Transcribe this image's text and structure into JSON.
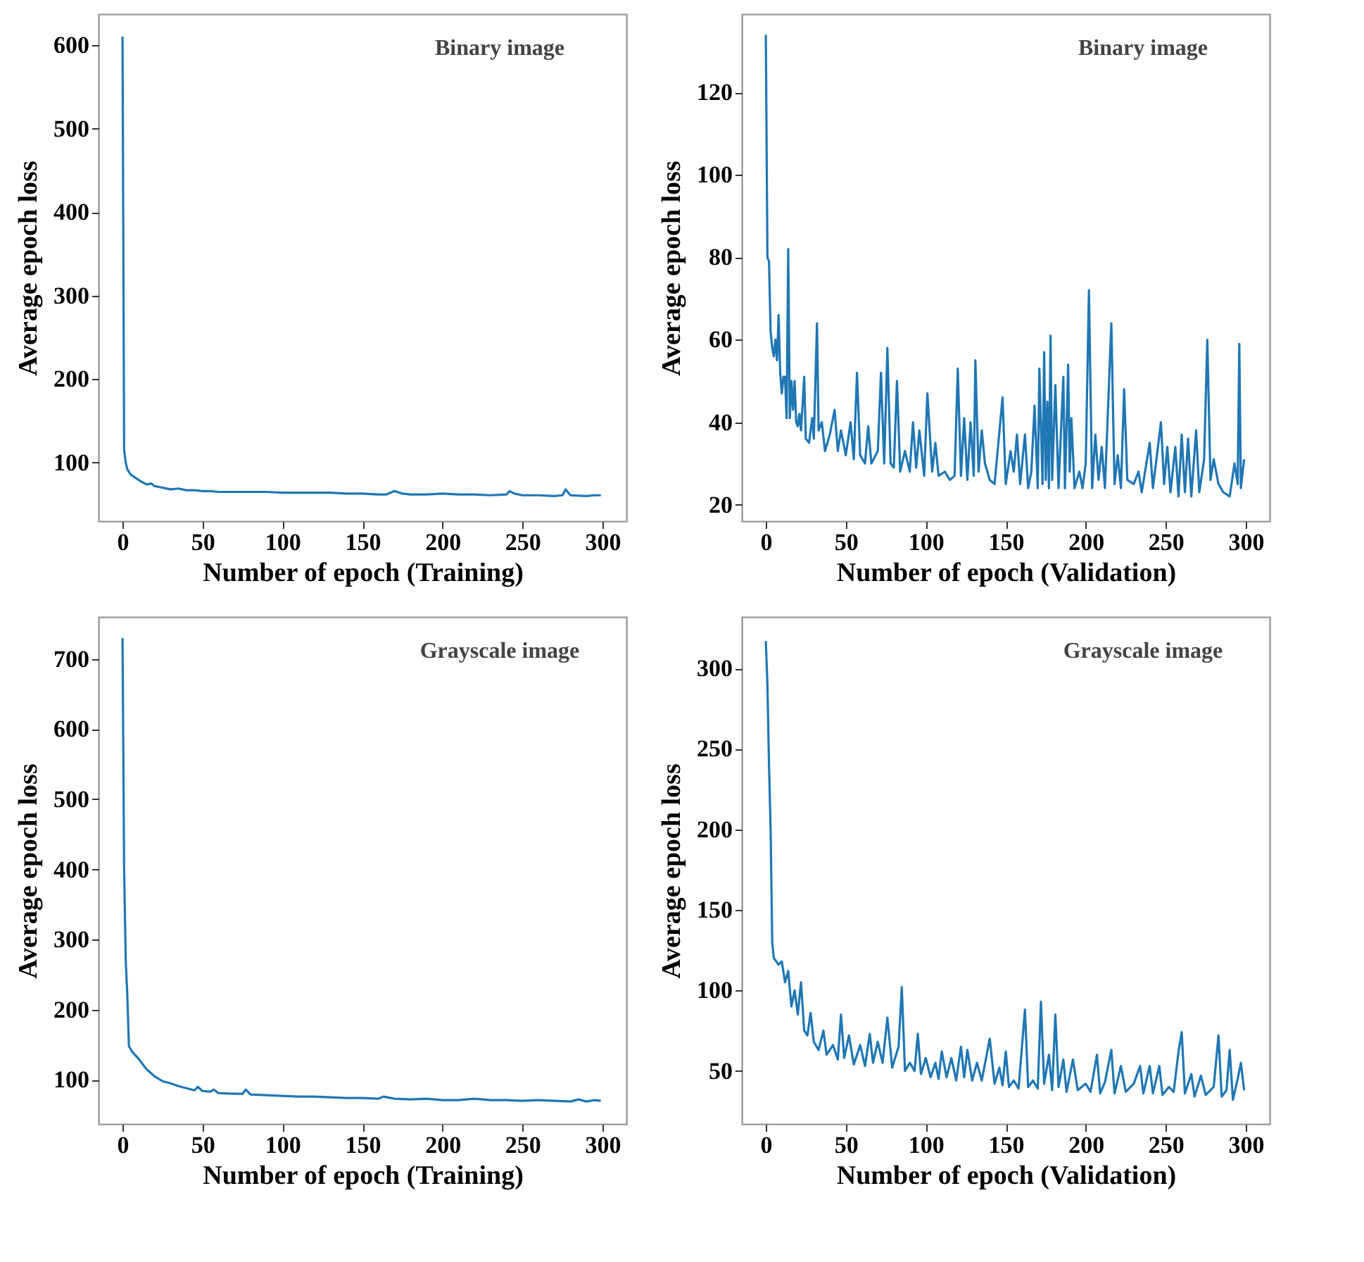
{
  "chart_data": [
    {
      "type": "line",
      "xlabel": "Number of epoch (Training)",
      "ylabel": "Average epoch loss",
      "annotations": [
        "Binary image"
      ],
      "color": "#1f77b4",
      "xlim": [
        -15,
        315
      ],
      "ylim": [
        30,
        637
      ],
      "xticks": [
        0,
        50,
        100,
        150,
        200,
        250,
        300
      ],
      "yticks": [
        100,
        200,
        300,
        400,
        500,
        600
      ],
      "x": [
        0,
        1,
        2,
        3,
        5,
        8,
        12,
        15,
        18,
        20,
        25,
        30,
        35,
        40,
        45,
        50,
        55,
        60,
        70,
        80,
        90,
        100,
        110,
        120,
        130,
        140,
        150,
        160,
        165,
        170,
        175,
        180,
        190,
        200,
        210,
        220,
        230,
        240,
        242,
        245,
        250,
        260,
        270,
        275,
        277,
        280,
        290,
        295,
        299
      ],
      "values": [
        610,
        115,
        100,
        92,
        86,
        82,
        77,
        74,
        75,
        72,
        70,
        68,
        69,
        67,
        67,
        66,
        66,
        65,
        65,
        65,
        65,
        64,
        64,
        64,
        64,
        63,
        63,
        62,
        62,
        66,
        63,
        62,
        62,
        63,
        62,
        62,
        61,
        62,
        66,
        63,
        61,
        61,
        60,
        61,
        68,
        61,
        60,
        61,
        61
      ]
    },
    {
      "type": "line",
      "xlabel": "Number of epoch (Validation)",
      "ylabel": "Average epoch loss",
      "annotations": [
        "Binary image"
      ],
      "color": "#1f77b4",
      "xlim": [
        -15,
        315
      ],
      "ylim": [
        16,
        139
      ],
      "xticks": [
        0,
        50,
        100,
        150,
        200,
        250,
        300
      ],
      "yticks": [
        20,
        40,
        60,
        80,
        100,
        120
      ],
      "x": [
        0,
        1,
        2,
        3,
        4,
        5,
        6,
        7,
        8,
        9,
        10,
        11,
        12,
        13,
        14,
        15,
        16,
        17,
        18,
        19,
        20,
        21,
        22,
        24,
        25,
        27,
        29,
        30,
        32,
        33,
        35,
        37,
        40,
        43,
        45,
        47,
        50,
        53,
        55,
        57,
        59,
        62,
        64,
        66,
        70,
        72,
        74,
        76,
        78,
        80,
        82,
        84,
        87,
        90,
        92,
        94,
        96,
        99,
        101,
        104,
        106,
        108,
        112,
        115,
        118,
        120,
        122,
        124,
        126,
        128,
        130,
        131,
        133,
        135,
        137,
        140,
        143,
        148,
        150,
        153,
        155,
        157,
        159,
        162,
        164,
        166,
        168,
        170,
        171,
        173,
        174,
        175,
        176,
        177,
        178,
        179,
        181,
        183,
        186,
        187,
        189,
        190,
        191,
        193,
        196,
        198,
        200,
        202,
        204,
        206,
        208,
        210,
        212,
        216,
        218,
        220,
        222,
        224,
        226,
        230,
        233,
        235,
        240,
        242,
        247,
        249,
        251,
        253,
        256,
        258,
        260,
        262,
        264,
        266,
        269,
        271,
        274,
        276,
        278,
        280,
        283,
        286,
        290,
        293,
        295,
        296,
        297,
        299
      ],
      "values": [
        134,
        80,
        79,
        62,
        58,
        56,
        60,
        55,
        66,
        52,
        47,
        51,
        51,
        41,
        82,
        41,
        50,
        43,
        50,
        40,
        39,
        42,
        38,
        51,
        36,
        35,
        41,
        36,
        64,
        38,
        40,
        33,
        37,
        43,
        33,
        38,
        32,
        40,
        31,
        52,
        32,
        30,
        39,
        30,
        33,
        52,
        30,
        58,
        30,
        29,
        50,
        28,
        33,
        28,
        40,
        29,
        38,
        27,
        47,
        28,
        35,
        27,
        28,
        26,
        27,
        53,
        27,
        41,
        26,
        40,
        27,
        55,
        28,
        38,
        30,
        26,
        25,
        46,
        25,
        33,
        28,
        37,
        25,
        37,
        24,
        28,
        44,
        24,
        53,
        25,
        57,
        26,
        45,
        24,
        61,
        26,
        49,
        24,
        51,
        24,
        54,
        28,
        41,
        24,
        28,
        24,
        30,
        72,
        24,
        37,
        26,
        34,
        24,
        64,
        25,
        32,
        24,
        48,
        26,
        25,
        28,
        23,
        35,
        24,
        40,
        25,
        34,
        23,
        34,
        22,
        37,
        23,
        36,
        22,
        38,
        23,
        31,
        60,
        26,
        31,
        25,
        23,
        22,
        30,
        25,
        59,
        24,
        31
      ]
    },
    {
      "type": "line",
      "xlabel": "Number of epoch (Training)",
      "ylabel": "Average epoch loss",
      "annotations": [
        "Grayscale image"
      ],
      "color": "#1f77b4",
      "xlim": [
        -15,
        315
      ],
      "ylim": [
        37,
        760
      ],
      "xticks": [
        0,
        50,
        100,
        150,
        200,
        250,
        300
      ],
      "yticks": [
        100,
        200,
        300,
        400,
        500,
        600,
        700
      ],
      "x": [
        0,
        1,
        2,
        3,
        4,
        6,
        10,
        15,
        20,
        25,
        30,
        35,
        40,
        45,
        47,
        50,
        55,
        57,
        60,
        70,
        75,
        77,
        80,
        90,
        100,
        110,
        120,
        130,
        140,
        150,
        160,
        163,
        170,
        180,
        190,
        200,
        210,
        220,
        230,
        240,
        250,
        260,
        270,
        280,
        285,
        290,
        295,
        299
      ],
      "values": [
        730,
        400,
        270,
        220,
        148,
        140,
        130,
        115,
        105,
        98,
        95,
        91,
        88,
        85,
        90,
        84,
        83,
        86,
        81,
        80,
        80,
        86,
        79,
        78,
        77,
        76,
        76,
        75,
        74,
        74,
        73,
        76,
        73,
        72,
        73,
        71,
        71,
        73,
        71,
        71,
        70,
        71,
        70,
        69,
        72,
        69,
        71,
        70
      ]
    },
    {
      "type": "line",
      "xlabel": "Number of epoch (Validation)",
      "ylabel": "Average epoch loss",
      "annotations": [
        "Grayscale image"
      ],
      "color": "#1f77b4",
      "xlim": [
        -15,
        315
      ],
      "ylim": [
        17,
        332
      ],
      "xticks": [
        0,
        50,
        100,
        150,
        200,
        250,
        300
      ],
      "yticks": [
        50,
        100,
        150,
        200,
        250,
        300
      ],
      "x": [
        0,
        1,
        2,
        3,
        4,
        5,
        8,
        10,
        12,
        14,
        16,
        18,
        20,
        22,
        24,
        26,
        28,
        30,
        33,
        36,
        38,
        42,
        45,
        47,
        49,
        52,
        55,
        59,
        62,
        65,
        67,
        70,
        73,
        76,
        79,
        83,
        85,
        87,
        90,
        93,
        95,
        97,
        100,
        103,
        106,
        108,
        110,
        113,
        116,
        119,
        122,
        124,
        126,
        129,
        132,
        135,
        140,
        143,
        146,
        148,
        150,
        152,
        155,
        158,
        162,
        164,
        167,
        170,
        172,
        174,
        177,
        179,
        181,
        183,
        186,
        188,
        192,
        195,
        200,
        203,
        207,
        209,
        212,
        216,
        218,
        222,
        225,
        230,
        234,
        236,
        240,
        242,
        246,
        248,
        252,
        255,
        258,
        260,
        262,
        266,
        268,
        272,
        275,
        280,
        283,
        285,
        288,
        290,
        292,
        295,
        297,
        299
      ],
      "values": [
        317,
        290,
        240,
        200,
        130,
        120,
        116,
        118,
        105,
        112,
        90,
        100,
        85,
        105,
        75,
        72,
        86,
        68,
        63,
        75,
        60,
        66,
        57,
        85,
        58,
        72,
        54,
        66,
        53,
        73,
        55,
        68,
        55,
        83,
        52,
        65,
        102,
        50,
        55,
        50,
        73,
        48,
        58,
        46,
        55,
        45,
        62,
        46,
        58,
        44,
        65,
        46,
        63,
        44,
        55,
        44,
        70,
        42,
        52,
        41,
        62,
        40,
        44,
        39,
        88,
        40,
        44,
        39,
        93,
        42,
        60,
        38,
        85,
        40,
        57,
        37,
        57,
        38,
        42,
        37,
        60,
        36,
        43,
        63,
        36,
        53,
        37,
        42,
        53,
        36,
        53,
        36,
        53,
        35,
        40,
        37,
        62,
        74,
        36,
        48,
        34,
        47,
        35,
        40,
        72,
        34,
        38,
        63,
        32,
        45,
        55,
        38
      ]
    }
  ]
}
